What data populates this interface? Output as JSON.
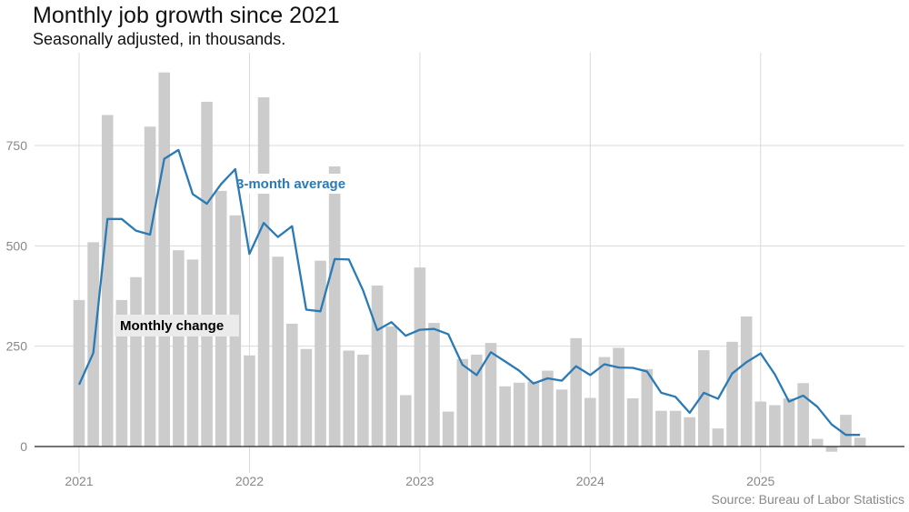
{
  "chart_data": {
    "type": "bar",
    "title": "Monthly job growth since 2021",
    "subtitle": "Seasonally adjusted, in thousands.",
    "source": "Source: Bureau of Labor Statistics",
    "xlabel": "",
    "ylabel": "",
    "ylim": [
      -30,
      985
    ],
    "y_ticks": [
      0,
      250,
      500,
      750
    ],
    "x_ticks": [
      {
        "label": "2021",
        "index": 0
      },
      {
        "label": "2022",
        "index": 12
      },
      {
        "label": "2023",
        "index": 24
      },
      {
        "label": "2024",
        "index": 36
      },
      {
        "label": "2025",
        "index": 48
      }
    ],
    "grid": true,
    "bar_color": "#cccccc",
    "line_color": "#2a7ab5",
    "months": [
      "2021-01",
      "2021-02",
      "2021-03",
      "2021-04",
      "2021-05",
      "2021-06",
      "2021-07",
      "2021-08",
      "2021-09",
      "2021-10",
      "2021-11",
      "2021-12",
      "2022-01",
      "2022-02",
      "2022-03",
      "2022-04",
      "2022-05",
      "2022-06",
      "2022-07",
      "2022-08",
      "2022-09",
      "2022-10",
      "2022-11",
      "2022-12",
      "2023-01",
      "2023-02",
      "2023-03",
      "2023-04",
      "2023-05",
      "2023-06",
      "2023-07",
      "2023-08",
      "2023-09",
      "2023-10",
      "2023-11",
      "2023-12",
      "2024-01",
      "2024-02",
      "2024-03",
      "2024-04",
      "2024-05",
      "2024-06",
      "2024-07",
      "2024-08",
      "2024-09",
      "2024-10",
      "2024-11",
      "2024-12",
      "2025-01",
      "2025-02",
      "2025-03",
      "2025-04",
      "2025-05",
      "2025-06",
      "2025-07",
      "2025-08"
    ],
    "series": [
      {
        "name": "Monthly change",
        "type": "bar",
        "values": [
          365,
          509,
          826,
          365,
          422,
          797,
          932,
          489,
          466,
          859,
          637,
          576,
          227,
          870,
          473,
          306,
          243,
          463,
          698,
          239,
          229,
          401,
          299,
          128,
          446,
          308,
          87,
          218,
          229,
          258,
          150,
          159,
          162,
          189,
          142,
          270,
          121,
          223,
          246,
          120,
          193,
          89,
          89,
          73,
          240,
          45,
          261,
          324,
          112,
          103,
          120,
          158,
          19,
          -13,
          79,
          22
        ]
      },
      {
        "name": "3-month average",
        "type": "line",
        "values": [
          154,
          233,
          567,
          567,
          538,
          528,
          717,
          739,
          629,
          605,
          654,
          691,
          480,
          557,
          522,
          549,
          341,
          337,
          467,
          466,
          389,
          290,
          310,
          276,
          291,
          293,
          280,
          204,
          178,
          235,
          212,
          189,
          157,
          170,
          164,
          200,
          178,
          205,
          197,
          196,
          187,
          134,
          124,
          84,
          134,
          119,
          182,
          210,
          232,
          180,
          112,
          127,
          99,
          55,
          29,
          29
        ]
      }
    ],
    "annotations": [
      {
        "text": "3-month average",
        "series": "3-month average"
      },
      {
        "text": "Monthly change",
        "series": "Monthly change"
      }
    ]
  }
}
